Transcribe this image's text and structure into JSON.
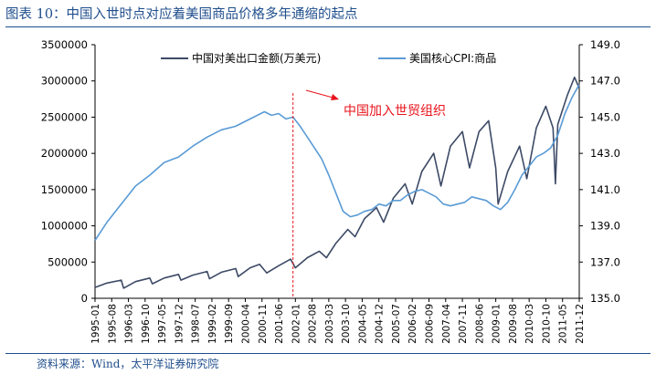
{
  "header": {
    "title": "图表 10：中国入世时点对应着美国商品价格多年通缩的起点"
  },
  "footer": {
    "source": "资料来源：Wind，太平洋证券研究院"
  },
  "colors": {
    "title": "#1f4e8c",
    "exports_line": "#3d4a66",
    "cpi_line": "#5a9bd5",
    "annotation": "#e8141c"
  },
  "chart_data": {
    "type": "line",
    "title": "",
    "xlabel": "",
    "ylabel_left": "",
    "ylabel_right": "",
    "y_left_lim": [
      0,
      3500000
    ],
    "y_right_lim": [
      135.0,
      149.0
    ],
    "y_left_ticks": [
      "0",
      "500000",
      "1000000",
      "1500000",
      "2000000",
      "2500000",
      "3000000",
      "3500000"
    ],
    "y_right_ticks": [
      "135.0",
      "137.0",
      "139.0",
      "141.0",
      "143.0",
      "145.0",
      "147.0",
      "149.0"
    ],
    "x_ticks": [
      "1995-01",
      "1995-08",
      "1996-03",
      "1996-10",
      "1997-05",
      "1997-12",
      "1998-07",
      "1999-02",
      "1999-09",
      "2000-04",
      "2000-11",
      "2001-06",
      "2002-01",
      "2002-08",
      "2003-03",
      "2003-10",
      "2004-05",
      "2004-12",
      "2005-07",
      "2006-02",
      "2006-09",
      "2007-04",
      "2007-11",
      "2008-06",
      "2009-01",
      "2009-08",
      "2010-03",
      "2010-10",
      "2011-05",
      "2011-12"
    ],
    "grid": false,
    "legend_position": "top",
    "series": [
      {
        "name": "中国对美出口金额(万美元)",
        "axis": "left",
        "points": [
          [
            "1995-01",
            150000
          ],
          [
            "1995-06",
            210000
          ],
          [
            "1995-12",
            250000
          ],
          [
            "1996-01",
            140000
          ],
          [
            "1996-06",
            230000
          ],
          [
            "1996-12",
            280000
          ],
          [
            "1997-01",
            200000
          ],
          [
            "1997-06",
            280000
          ],
          [
            "1997-12",
            330000
          ],
          [
            "1998-01",
            250000
          ],
          [
            "1998-06",
            320000
          ],
          [
            "1998-12",
            370000
          ],
          [
            "1999-01",
            270000
          ],
          [
            "1999-06",
            360000
          ],
          [
            "1999-12",
            410000
          ],
          [
            "2000-01",
            300000
          ],
          [
            "2000-06",
            420000
          ],
          [
            "2000-10",
            470000
          ],
          [
            "2001-01",
            350000
          ],
          [
            "2001-06",
            450000
          ],
          [
            "2001-11",
            540000
          ],
          [
            "2001-12",
            480000
          ],
          [
            "2002-01",
            420000
          ],
          [
            "2002-06",
            560000
          ],
          [
            "2002-11",
            650000
          ],
          [
            "2003-02",
            560000
          ],
          [
            "2003-06",
            760000
          ],
          [
            "2003-11",
            950000
          ],
          [
            "2004-02",
            850000
          ],
          [
            "2004-06",
            1100000
          ],
          [
            "2004-11",
            1250000
          ],
          [
            "2005-02",
            1050000
          ],
          [
            "2005-06",
            1380000
          ],
          [
            "2005-11",
            1580000
          ],
          [
            "2006-02",
            1300000
          ],
          [
            "2006-06",
            1750000
          ],
          [
            "2006-11",
            2000000
          ],
          [
            "2007-02",
            1550000
          ],
          [
            "2007-06",
            2100000
          ],
          [
            "2007-11",
            2300000
          ],
          [
            "2008-02",
            1800000
          ],
          [
            "2008-06",
            2300000
          ],
          [
            "2008-10",
            2450000
          ],
          [
            "2009-01",
            1800000
          ],
          [
            "2009-02",
            1300000
          ],
          [
            "2009-06",
            1750000
          ],
          [
            "2009-11",
            2100000
          ],
          [
            "2010-02",
            1650000
          ],
          [
            "2010-06",
            2350000
          ],
          [
            "2010-10",
            2650000
          ],
          [
            "2011-01",
            2350000
          ],
          [
            "2011-02",
            1580000
          ],
          [
            "2011-03",
            2400000
          ],
          [
            "2011-07",
            2800000
          ],
          [
            "2011-10",
            3050000
          ],
          [
            "2011-12",
            2900000
          ]
        ]
      },
      {
        "name": "美国核心CPI:商品",
        "axis": "right",
        "points": [
          [
            "1995-01",
            138.2
          ],
          [
            "1995-06",
            139.2
          ],
          [
            "1995-12",
            140.2
          ],
          [
            "1996-06",
            141.2
          ],
          [
            "1996-12",
            141.8
          ],
          [
            "1997-06",
            142.5
          ],
          [
            "1997-12",
            142.8
          ],
          [
            "1998-06",
            143.4
          ],
          [
            "1998-12",
            143.9
          ],
          [
            "1999-06",
            144.3
          ],
          [
            "1999-12",
            144.5
          ],
          [
            "2000-06",
            144.9
          ],
          [
            "2000-12",
            145.3
          ],
          [
            "2001-03",
            145.1
          ],
          [
            "2001-06",
            145.2
          ],
          [
            "2001-09",
            144.9
          ],
          [
            "2001-12",
            145.0
          ],
          [
            "2002-03",
            144.5
          ],
          [
            "2002-06",
            143.9
          ],
          [
            "2002-09",
            143.3
          ],
          [
            "2002-12",
            142.7
          ],
          [
            "2003-03",
            141.8
          ],
          [
            "2003-06",
            140.8
          ],
          [
            "2003-09",
            139.8
          ],
          [
            "2003-12",
            139.5
          ],
          [
            "2004-03",
            139.6
          ],
          [
            "2004-06",
            139.8
          ],
          [
            "2004-09",
            139.9
          ],
          [
            "2004-12",
            140.2
          ],
          [
            "2005-03",
            140.1
          ],
          [
            "2005-06",
            140.4
          ],
          [
            "2005-09",
            140.4
          ],
          [
            "2005-12",
            140.7
          ],
          [
            "2006-03",
            140.9
          ],
          [
            "2006-06",
            141.0
          ],
          [
            "2006-09",
            140.8
          ],
          [
            "2006-12",
            140.6
          ],
          [
            "2007-03",
            140.2
          ],
          [
            "2007-06",
            140.1
          ],
          [
            "2007-09",
            140.2
          ],
          [
            "2007-12",
            140.3
          ],
          [
            "2008-03",
            140.6
          ],
          [
            "2008-06",
            140.5
          ],
          [
            "2008-09",
            140.4
          ],
          [
            "2008-12",
            140.1
          ],
          [
            "2009-03",
            139.9
          ],
          [
            "2009-06",
            140.3
          ],
          [
            "2009-09",
            141.0
          ],
          [
            "2009-12",
            141.8
          ],
          [
            "2010-03",
            142.3
          ],
          [
            "2010-06",
            142.8
          ],
          [
            "2010-09",
            143.0
          ],
          [
            "2010-12",
            143.3
          ],
          [
            "2011-03",
            144.0
          ],
          [
            "2011-06",
            145.2
          ],
          [
            "2011-09",
            146.1
          ],
          [
            "2011-12",
            146.8
          ]
        ]
      }
    ],
    "annotations": [
      {
        "text": "中国加入世贸组织",
        "marker_date": "2001-12"
      }
    ]
  }
}
